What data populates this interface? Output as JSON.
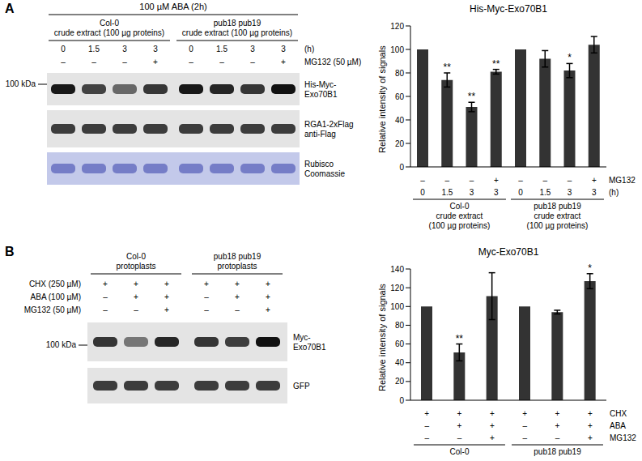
{
  "blots": [
    {
      "panel": "A",
      "header": "100 µM ABA (2h)",
      "groups": [
        {
          "lines": [
            "Col-0",
            "crude extract (100 µg proteins)"
          ]
        },
        {
          "lines": [
            "pub18 pub19",
            "crude extract (100 µg proteins)"
          ]
        }
      ],
      "lane_rows": [
        {
          "label": "(h)",
          "values": [
            "0",
            "1.5",
            "3",
            "3",
            "0",
            "1.5",
            "3",
            "3"
          ]
        },
        {
          "label": "MG132 (50 µM)",
          "values": [
            "–",
            "–",
            "–",
            "+",
            "–",
            "–",
            "–",
            "+"
          ]
        }
      ],
      "marker": "100 kDa",
      "rows": [
        {
          "lines": [
            "His-Myc-",
            "Exo70B1"
          ]
        },
        {
          "lines": [
            "RGA1-2xFlag",
            "anti-Flag"
          ]
        },
        {
          "lines": [
            "Rubisco",
            "Coomassie"
          ]
        }
      ]
    },
    {
      "panel": "B",
      "header": null,
      "groups": [
        {
          "lines": [
            "Col-0",
            "protoplasts"
          ]
        },
        {
          "lines": [
            "pub18 pub19",
            "protoplasts"
          ]
        }
      ],
      "lane_rows": [
        {
          "label": "CHX (250 µM)",
          "values": [
            "+",
            "+",
            "+",
            "+",
            "+",
            "+"
          ]
        },
        {
          "label": "ABA (100 µM)",
          "values": [
            "–",
            "+",
            "+",
            "–",
            "+",
            "+"
          ]
        },
        {
          "label": "MG132 (50 µM)",
          "values": [
            "–",
            "–",
            "+",
            "–",
            "–",
            "+"
          ]
        }
      ],
      "marker": "100 kDa",
      "rows": [
        {
          "lines": [
            "Myc-",
            "Exo70B1"
          ]
        },
        {
          "lines": [
            "GFP"
          ]
        }
      ]
    }
  ],
  "chart_data": [
    {
      "type": "bar",
      "title": "His-Myc-Exo70B1",
      "y_label": "Relative intensity of signals",
      "values": [
        100,
        74,
        51,
        81,
        100,
        92,
        82,
        104
      ],
      "errors": [
        0,
        6,
        4,
        2,
        0,
        7,
        6,
        7
      ],
      "significance": [
        null,
        "**",
        "**",
        "**",
        null,
        null,
        "*",
        null
      ],
      "x_rows": [
        {
          "label": "MG132",
          "values": [
            "–",
            "–",
            "–",
            "+",
            "–",
            "–",
            "–",
            "+"
          ]
        },
        {
          "label": "(h)",
          "values": [
            "0",
            "1.5",
            "3",
            "3",
            "0",
            "1.5",
            "3",
            "3"
          ]
        }
      ],
      "groups": [
        {
          "lines": [
            "Col-0",
            "crude extract",
            "(100 µg proteins)"
          ],
          "size": 4
        },
        {
          "lines": [
            "pub18 pub19",
            "crude extract",
            "(100 µg proteins)"
          ],
          "size": 4
        }
      ],
      "ylim": [
        0,
        120
      ],
      "yticks": [
        0,
        20,
        40,
        60,
        80,
        100,
        120
      ],
      "color": "#333333",
      "grid": false
    },
    {
      "type": "bar",
      "title": "Myc-Exo70B1",
      "y_label": "Relative intensity of signals",
      "values": [
        100,
        51,
        111,
        100,
        94,
        127
      ],
      "errors": [
        0,
        9,
        25,
        0,
        2,
        8
      ],
      "significance": [
        null,
        "**",
        null,
        null,
        null,
        "*"
      ],
      "x_rows": [
        {
          "label": "CHX",
          "values": [
            "+",
            "+",
            "+",
            "+",
            "+",
            "+"
          ]
        },
        {
          "label": "ABA",
          "values": [
            "–",
            "+",
            "+",
            "–",
            "+",
            "+"
          ]
        },
        {
          "label": "MG132",
          "values": [
            "–",
            "–",
            "+",
            "–",
            "–",
            "+"
          ]
        }
      ],
      "groups": [
        {
          "lines": [
            "Col-0"
          ],
          "size": 3
        },
        {
          "lines": [
            "pub18 pub19"
          ],
          "size": 3
        }
      ],
      "ylim": [
        0,
        140
      ],
      "yticks": [
        0,
        20,
        40,
        60,
        80,
        100,
        120,
        140
      ],
      "color": "#333333",
      "grid": false
    }
  ]
}
